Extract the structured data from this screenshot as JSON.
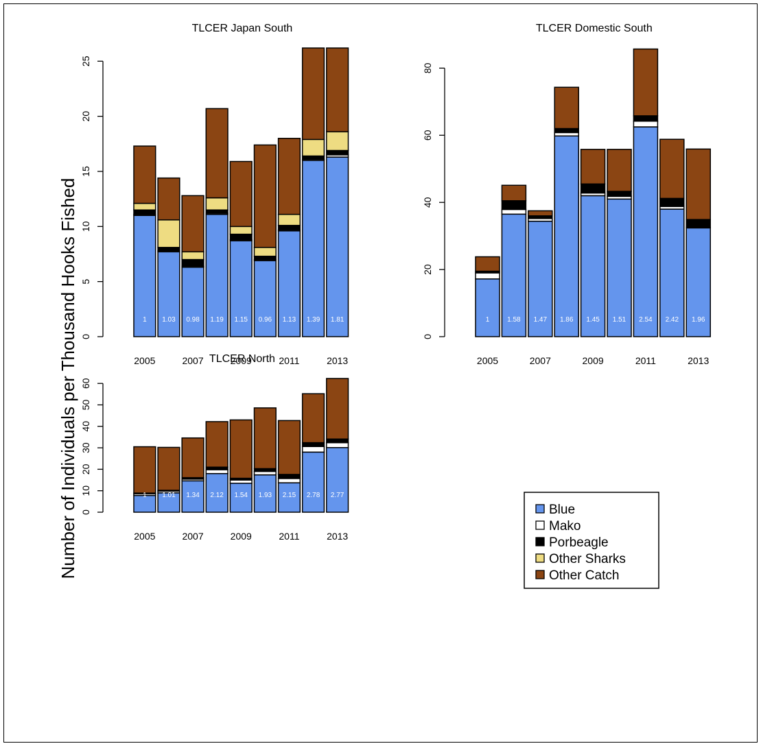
{
  "figure": {
    "ylabel": "Number of Individuals per Thousand Hooks Fished"
  },
  "chart_data": [
    {
      "type": "bar",
      "title": "TLCER Japan South",
      "stacked": true,
      "categories": [
        "2005",
        "2006",
        "2007",
        "2008",
        "2009",
        "2010",
        "2011",
        "2012",
        "2013"
      ],
      "x_tick_labels": [
        "2005",
        "",
        "2007",
        "",
        "2009",
        "",
        "2011",
        "",
        "2013"
      ],
      "ylim": [
        0,
        26.2
      ],
      "y_ticks": [
        0,
        5,
        10,
        15,
        20,
        25
      ],
      "series": [
        {
          "name": "Blue",
          "values": [
            11.0,
            7.7,
            6.3,
            11.1,
            8.7,
            6.9,
            9.6,
            16.0,
            16.3
          ]
        },
        {
          "name": "Mako",
          "values": [
            0.1,
            0.1,
            0.1,
            0.1,
            0.1,
            0.1,
            0.1,
            0.1,
            0.2
          ]
        },
        {
          "name": "Porbeagle",
          "values": [
            0.4,
            0.3,
            0.6,
            0.3,
            0.5,
            0.3,
            0.4,
            0.3,
            0.4
          ]
        },
        {
          "name": "Other Sharks",
          "values": [
            0.6,
            2.5,
            0.7,
            1.1,
            0.7,
            0.8,
            1.0,
            1.5,
            1.7
          ]
        },
        {
          "name": "Other Catch",
          "values": [
            5.2,
            3.8,
            5.1,
            8.1,
            5.9,
            9.3,
            6.9,
            8.3,
            7.6
          ]
        }
      ],
      "data_labels": [
        "1",
        "1.03",
        "0.98",
        "1.19",
        "1.15",
        "0.96",
        "1.13",
        "1.39",
        "1.81"
      ]
    },
    {
      "type": "bar",
      "title": "TLCER Domestic South",
      "stacked": true,
      "categories": [
        "2005",
        "2006",
        "2007",
        "2008",
        "2009",
        "2010",
        "2011",
        "2012",
        "2013"
      ],
      "x_tick_labels": [
        "2005",
        "",
        "2007",
        "",
        "2009",
        "",
        "2011",
        "",
        "2013"
      ],
      "ylim": [
        0,
        86
      ],
      "y_ticks": [
        0,
        20,
        40,
        60,
        80
      ],
      "series": [
        {
          "name": "Blue",
          "values": [
            17.2,
            36.5,
            34.4,
            59.8,
            42.0,
            41.0,
            62.5,
            38.0,
            32.4
          ]
        },
        {
          "name": "Mako",
          "values": [
            1.8,
            1.4,
            0.8,
            1.0,
            0.8,
            0.8,
            1.7,
            0.8,
            0.2
          ]
        },
        {
          "name": "Porbeagle",
          "values": [
            0.5,
            2.6,
            0.8,
            1.2,
            2.7,
            1.5,
            1.6,
            2.4,
            2.3
          ]
        },
        {
          "name": "Other Sharks",
          "values": [
            0,
            0,
            0,
            0,
            0,
            0,
            0,
            0,
            0
          ]
        },
        {
          "name": "Other Catch",
          "values": [
            4.3,
            4.6,
            1.5,
            12.3,
            10.3,
            12.5,
            19.9,
            17.6,
            21.0
          ]
        }
      ],
      "data_labels": [
        "1",
        "1.58",
        "1.47",
        "1.86",
        "1.45",
        "1.51",
        "2.54",
        "2.42",
        "1.96"
      ]
    },
    {
      "type": "bar",
      "title": "TLCER North",
      "stacked": true,
      "categories": [
        "2005",
        "2006",
        "2007",
        "2008",
        "2009",
        "2010",
        "2011",
        "2012",
        "2013"
      ],
      "x_tick_labels": [
        "2005",
        "",
        "2007",
        "",
        "2009",
        "",
        "2011",
        "",
        "2013"
      ],
      "ylim": [
        0,
        62.3
      ],
      "y_ticks": [
        0,
        10,
        20,
        30,
        40,
        50,
        60
      ],
      "series": [
        {
          "name": "Blue",
          "values": [
            7.8,
            9.0,
            14.6,
            18.0,
            13.5,
            17.4,
            13.7,
            28.0,
            30.1
          ]
        },
        {
          "name": "Mako",
          "values": [
            0.8,
            0.8,
            0.8,
            1.8,
            1.5,
            1.6,
            2.0,
            2.6,
            2.3
          ]
        },
        {
          "name": "Porbeagle",
          "values": [
            0.3,
            0.4,
            0.7,
            1.2,
            0.8,
            1.3,
            1.9,
            1.8,
            1.7
          ]
        },
        {
          "name": "Other Sharks",
          "values": [
            0,
            0,
            0,
            0,
            0,
            0,
            0,
            0,
            0
          ]
        },
        {
          "name": "Other Catch",
          "values": [
            21.6,
            20.0,
            18.5,
            21.2,
            27.2,
            28.3,
            25.1,
            22.8,
            28.2
          ]
        }
      ],
      "data_labels": [
        "1",
        "1.01",
        "1.34",
        "2.12",
        "1.54",
        "1.93",
        "2.15",
        "2.78",
        "2.77"
      ]
    }
  ],
  "colors": {
    "Blue": "#6495ed",
    "Mako": "#ffffff",
    "Porbeagle": "#000000",
    "Other Sharks": "#eedc82",
    "Other Catch": "#8b4513"
  },
  "legend": {
    "placement": "bottom-right",
    "items": [
      "Blue",
      "Mako",
      "Porbeagle",
      "Other Sharks",
      "Other Catch"
    ]
  }
}
